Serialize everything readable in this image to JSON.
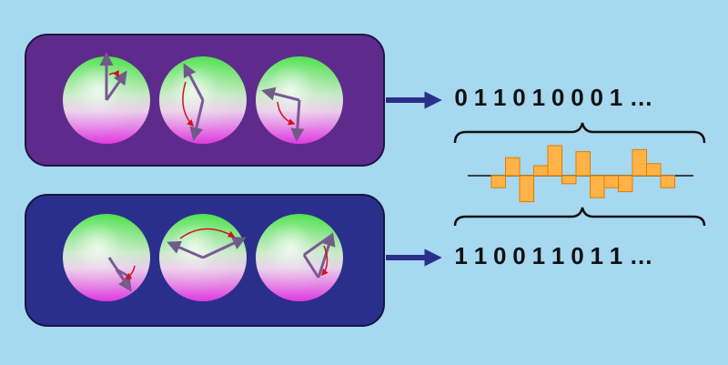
{
  "colors": {
    "background": "#a6d8ef",
    "top_panel": "#5e2b8c",
    "bottom_panel": "#2b2f8c",
    "arrow": "#2b2f8c",
    "bar_fill": "#ffb347",
    "bar_stroke": "#e07b00",
    "rotation_arrow": "#d0121a",
    "spin_vector": "#7a5a96"
  },
  "top_row": {
    "bits": [
      "0",
      "1",
      "1",
      "0",
      "1",
      "0",
      "0",
      "0",
      "1"
    ],
    "ellipsis": "…"
  },
  "bottom_row": {
    "bits": [
      "1",
      "1",
      "0",
      "0",
      "1",
      "1",
      "0",
      "1",
      "1"
    ],
    "ellipsis": "…"
  },
  "difference_bars": {
    "values": [
      -0.6,
      0.9,
      -1.3,
      0.5,
      1.5,
      -0.4,
      1.2,
      -1.1,
      -0.6,
      -0.8,
      1.3,
      0.6,
      -0.6
    ]
  }
}
